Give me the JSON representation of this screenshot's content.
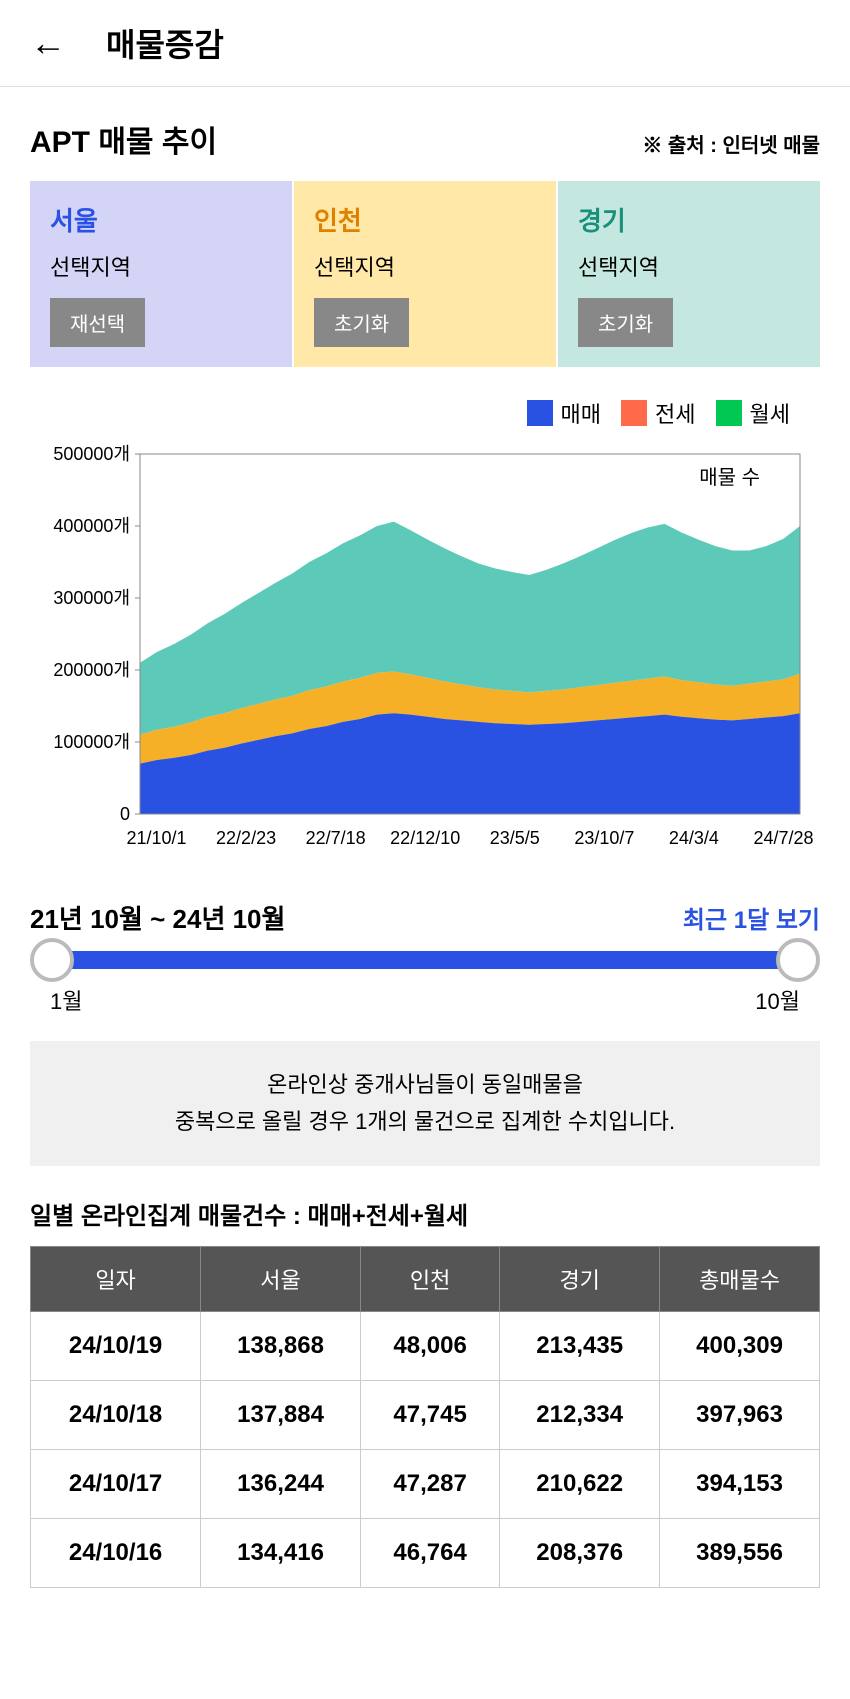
{
  "header": {
    "title": "매물증감"
  },
  "subtitle": "APT 매물 추이",
  "source": "※ 출처 : 인터넷 매물",
  "regions": [
    {
      "name": "서울",
      "sub": "선택지역",
      "btn": "재선택",
      "bg": "#d4d4f7",
      "name_color": "#2952e3"
    },
    {
      "name": "인천",
      "sub": "선택지역",
      "btn": "초기화",
      "bg": "#ffe8a8",
      "name_color": "#e08000"
    },
    {
      "name": "경기",
      "sub": "선택지역",
      "btn": "초기화",
      "bg": "#c4e8e0",
      "name_color": "#1a8f7a"
    }
  ],
  "legend": [
    {
      "label": "매매",
      "fill": "#2952e3",
      "border": "#2952e3"
    },
    {
      "label": "전세",
      "fill": "#ff6b4a",
      "border": "#ff6b4a"
    },
    {
      "label": "월세",
      "fill": "#00c853",
      "border": "#00c853"
    }
  ],
  "chart": {
    "inner_label": "매물 수",
    "ylim": [
      0,
      500000
    ],
    "yticks": [
      0,
      100000,
      200000,
      300000,
      400000,
      500000
    ],
    "ytick_labels": [
      "0",
      "100000개",
      "200000개",
      "300000개",
      "400000개",
      "500000개"
    ],
    "xtick_labels": [
      "21/10/1",
      "22/2/23",
      "22/7/18",
      "22/12/10",
      "23/5/5",
      "23/10/7",
      "24/3/4",
      "24/7/28"
    ],
    "n_points": 40,
    "series_bottom": {
      "color": "#2952e3",
      "values": [
        70000,
        75000,
        78000,
        82000,
        88000,
        92000,
        98000,
        103000,
        108000,
        112000,
        118000,
        122000,
        128000,
        132000,
        138000,
        140000,
        138000,
        135000,
        132000,
        130000,
        128000,
        126000,
        125000,
        124000,
        125000,
        126000,
        128000,
        130000,
        132000,
        134000,
        136000,
        138000,
        135000,
        133000,
        131000,
        130000,
        132000,
        134000,
        136000,
        140000
      ]
    },
    "series_middle": {
      "color": "#f5b027",
      "values": [
        40000,
        42000,
        43000,
        45000,
        47000,
        48000,
        49000,
        50000,
        51000,
        52000,
        54000,
        55000,
        56000,
        57000,
        58000,
        58000,
        56000,
        54000,
        52000,
        50000,
        48000,
        47000,
        46000,
        45000,
        46000,
        47000,
        48000,
        49000,
        50000,
        51000,
        52000,
        53000,
        51000,
        50000,
        49000,
        48000,
        49000,
        50000,
        51000,
        55000
      ]
    },
    "series_top": {
      "color": "#5dc9b9",
      "values": [
        100000,
        108000,
        115000,
        122000,
        130000,
        138000,
        146000,
        154000,
        162000,
        170000,
        178000,
        185000,
        192000,
        198000,
        204000,
        208000,
        200000,
        192000,
        185000,
        178000,
        172000,
        168000,
        165000,
        163000,
        168000,
        175000,
        182000,
        190000,
        198000,
        205000,
        210000,
        212000,
        205000,
        198000,
        192000,
        188000,
        185000,
        188000,
        195000,
        205000
      ]
    },
    "border_color": "#888",
    "grid_color": "#888"
  },
  "range": {
    "label": "21년 10월 ~ 24년 10월",
    "link": "최근 1달 보기",
    "start": "1월",
    "end": "10월"
  },
  "notice_line1": "온라인상 중개사님들이 동일매물을",
  "notice_line2": "중복으로 올릴 경우 1개의 물건으로 집계한 수치입니다.",
  "table": {
    "title": "일별 온라인집계 매물건수 : 매매+전세+월세",
    "columns": [
      "일자",
      "서울",
      "인천",
      "경기",
      "총매물수"
    ],
    "rows": [
      [
        "24/10/19",
        "138,868",
        "48,006",
        "213,435",
        "400,309"
      ],
      [
        "24/10/18",
        "137,884",
        "47,745",
        "212,334",
        "397,963"
      ],
      [
        "24/10/17",
        "136,244",
        "47,287",
        "210,622",
        "394,153"
      ],
      [
        "24/10/16",
        "134,416",
        "46,764",
        "208,376",
        "389,556"
      ]
    ]
  }
}
